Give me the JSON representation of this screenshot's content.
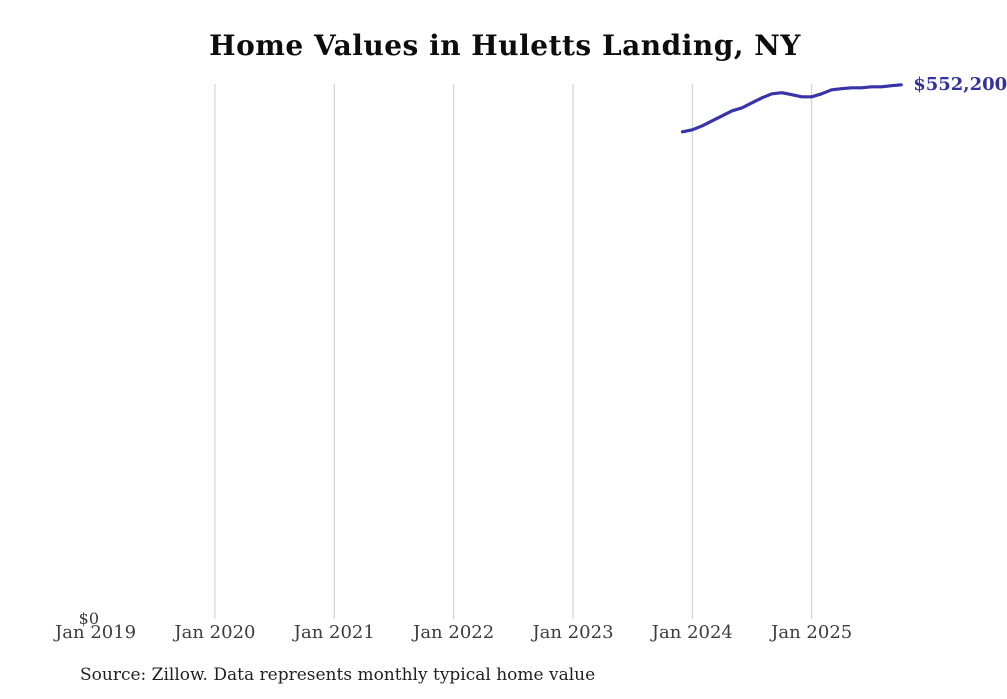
{
  "title": "Home Values in Huletts Landing, NY",
  "source_note": "Source: Zillow. Data represents monthly typical home value",
  "colors": {
    "line": "#3733a8",
    "grid": "#cccccc",
    "latest_value_text": "#34309e",
    "tick_text": "#3d3d3d",
    "title_text": "#0d0d0d",
    "source_text": "#1f1f1f",
    "background": "#ffffff"
  },
  "chart_data": {
    "type": "line",
    "title": "Home Values in Huletts Landing, NY",
    "xlabel": "",
    "ylabel": "",
    "ylim": [
      0,
      553000
    ],
    "grid": "vertical-only",
    "legend": "none",
    "y_tick_label": "$0",
    "latest_value_label": "$552,200",
    "x_ticks": [
      "Jan 2019",
      "Jan 2020",
      "Jan 2021",
      "Jan 2022",
      "Jan 2023",
      "Jan 2024",
      "Jan 2025"
    ],
    "start_month_offset_from_jan2019": 59,
    "x": [
      "Dec 2023",
      "Jan 2024",
      "Feb 2024",
      "Mar 2024",
      "Apr 2024",
      "May 2024",
      "Jun 2024",
      "Jul 2024",
      "Aug 2024",
      "Sep 2024",
      "Oct 2024",
      "Nov 2024",
      "Dec 2024",
      "Jan 2025",
      "Feb 2025",
      "Mar 2025",
      "Apr 2025",
      "May 2025",
      "Jun 2025",
      "Jul 2025",
      "Aug 2025",
      "Sep 2025",
      "Oct 2025"
    ],
    "series": [
      {
        "name": "Monthly typical home value",
        "values": [
          503600,
          505700,
          509800,
          515000,
          520100,
          525300,
          528400,
          533600,
          538700,
          542900,
          544000,
          541900,
          539800,
          539800,
          542900,
          547000,
          548100,
          549100,
          549100,
          550100,
          550100,
          551200,
          552200
        ]
      }
    ]
  }
}
